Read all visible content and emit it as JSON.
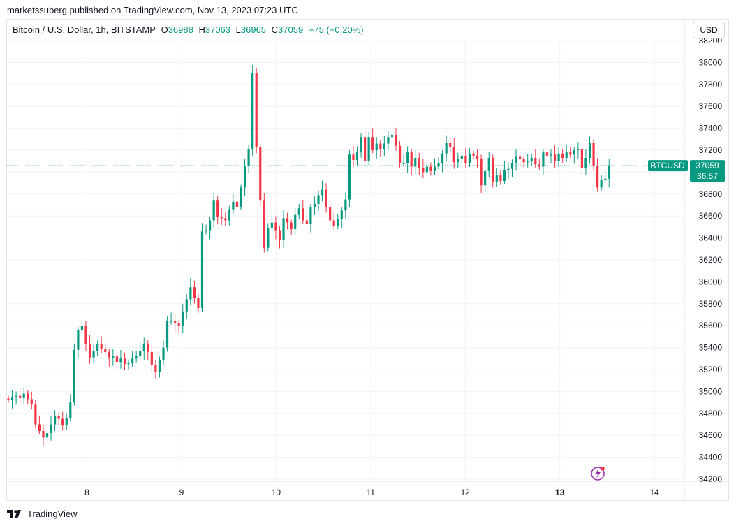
{
  "header": {
    "published": "marketssuberg published on TradingView.com, Nov 13, 2023 07:23 UTC"
  },
  "legend": {
    "symbol": "Bitcoin / U.S. Dollar, 1h, BITSTAMP",
    "o_label": "O",
    "o_value": "36988",
    "h_label": "H",
    "h_value": "37063",
    "l_label": "L",
    "l_value": "36965",
    "c_label": "C",
    "c_value": "37059",
    "change": "+75 (+0.20%)"
  },
  "currency_button": "USD",
  "footer": {
    "brand": "TradingView"
  },
  "colors": {
    "up": "#089981",
    "down": "#f23645",
    "grid": "#f0f3fa",
    "price_label_bg": "#089981"
  },
  "chart_data": {
    "type": "candlestick",
    "title": "Bitcoin / U.S. Dollar, 1h, BITSTAMP",
    "ylim": [
      34200,
      38200
    ],
    "y_ticks": [
      34200,
      34400,
      34600,
      34800,
      35000,
      35200,
      35400,
      35600,
      35800,
      36000,
      36200,
      36400,
      36600,
      36800,
      37000,
      37200,
      37400,
      37600,
      37800,
      38000,
      38200
    ],
    "x_ticks": [
      {
        "label": "8",
        "day": 8
      },
      {
        "label": "9",
        "day": 9
      },
      {
        "label": "10",
        "day": 10
      },
      {
        "label": "11",
        "day": 11
      },
      {
        "label": "12",
        "day": 12
      },
      {
        "label": "13",
        "day": 13,
        "bold": true
      },
      {
        "label": "14",
        "day": 14
      }
    ],
    "x_range_days": [
      7.155,
      14.39
    ],
    "series_label": "BTCUSD",
    "last_price": "37059",
    "countdown": "36:57",
    "last_price_value": 37059,
    "candles_close": [
      34920,
      34950,
      34960,
      34940,
      34980,
      34930,
      34880,
      34700,
      34640,
      34580,
      34620,
      34700,
      34780,
      34750,
      34690,
      34760,
      34900,
      35380,
      35560,
      35600,
      35430,
      35310,
      35370,
      35430,
      35390,
      35360,
      35310,
      35320,
      35270,
      35300,
      35250,
      35260,
      35300,
      35320,
      35370,
      35430,
      35360,
      35240,
      35180,
      35290,
      35400,
      35640,
      35640,
      35620,
      35600,
      35730,
      35840,
      35950,
      35850,
      35760,
      36460,
      36470,
      36560,
      36740,
      36590,
      36580,
      36560,
      36660,
      36730,
      36680,
      36860,
      37060,
      37210,
      37900,
      37230,
      36740,
      36310,
      36490,
      36540,
      36470,
      36380,
      36580,
      36540,
      36480,
      36610,
      36670,
      36560,
      36530,
      36680,
      36710,
      36790,
      36840,
      36680,
      36560,
      36510,
      36570,
      36650,
      36750,
      37160,
      37110,
      37180,
      37320,
      37100,
      37320,
      37200,
      37260,
      37210,
      37260,
      37320,
      37340,
      37240,
      37080,
      37080,
      37180,
      37050,
      37130,
      37040,
      37000,
      37050,
      37010,
      37050,
      37080,
      37170,
      37270,
      37230,
      37090,
      37120,
      37150,
      37080,
      37170,
      37150,
      37120,
      36880,
      37010,
      37130,
      36910,
      36970,
      36920,
      37020,
      37030,
      37080,
      37140,
      37120,
      37090,
      37100,
      37130,
      37070,
      37050,
      37180,
      37150,
      37160,
      37100,
      37170,
      37130,
      37180,
      37160,
      37200,
      37210,
      37040,
      37130,
      37270,
      37060,
      36860,
      36930,
      36940,
      37059
    ],
    "note_candles": "Close prices of hourly candles from Nov 7 ~04:00 to Nov 13 07:00 UTC"
  }
}
